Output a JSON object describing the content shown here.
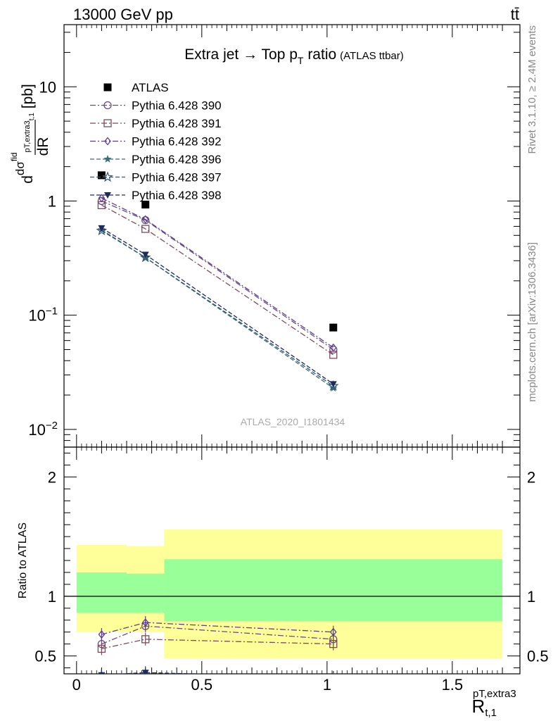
{
  "header": {
    "left": "13000 GeV pp",
    "right": "tt̄"
  },
  "side_labels": {
    "rivet": "Rivet 3.1.10, ≥ 2.4M events",
    "source": "mcplots.cern.ch [arXiv:1306.3436]"
  },
  "watermark": "ATLAS_2020_I1801434",
  "chart_data": [
    {
      "type": "scatter",
      "panel": "main",
      "title": "Extra jet → Top p",
      "title_sub": "T",
      "title_tail": " ratio",
      "title_note": "(ATLAS ttbar)",
      "ylabel": "dσ^fid / dR_pT,extra3 t,1 [pb]",
      "yscale": "log",
      "ylim": [
        0.007,
        35
      ],
      "xlim": [
        -0.05,
        1.77
      ],
      "y_ticks": [
        {
          "value": 0.01,
          "base": "10",
          "exp": "−2"
        },
        {
          "value": 0.1,
          "base": "10",
          "exp": "−1"
        },
        {
          "value": 1,
          "base": "1",
          "exp": ""
        },
        {
          "value": 10,
          "base": "10",
          "exp": ""
        }
      ],
      "legend_position": "top-left",
      "series": [
        {
          "name": "ATLAS",
          "color": "#000000",
          "marker": "filled-square",
          "line": "none",
          "x": [
            0.1,
            0.275,
            1.025
          ],
          "y": [
            1.68,
            0.93,
            0.078
          ]
        },
        {
          "name": "Pythia 6.428 390",
          "color": "#6b4a83",
          "marker": "open-circle",
          "line": "dash-dot",
          "x": [
            0.1,
            0.275,
            1.025
          ],
          "y": [
            1.0,
            0.68,
            0.05
          ]
        },
        {
          "name": "Pythia 6.428 391",
          "color": "#7a4b5c",
          "marker": "open-square",
          "line": "dash-dot",
          "x": [
            0.1,
            0.275,
            1.025
          ],
          "y": [
            0.92,
            0.57,
            0.045
          ]
        },
        {
          "name": "Pythia 6.428 392",
          "color": "#5c3f8f",
          "marker": "open-diamond",
          "line": "dash-dot",
          "x": [
            0.1,
            0.275,
            1.025
          ],
          "y": [
            1.06,
            0.69,
            0.052
          ]
        },
        {
          "name": "Pythia 6.428 396",
          "color": "#3f6b7a",
          "marker": "star",
          "line": "dashed",
          "x": [
            0.1,
            0.275,
            1.025
          ],
          "y": [
            0.56,
            0.32,
            0.023
          ]
        },
        {
          "name": "Pythia 6.428 397",
          "color": "#2e5a7a",
          "marker": "open-star",
          "line": "dashed",
          "x": [
            0.1,
            0.275,
            1.025
          ],
          "y": [
            0.55,
            0.32,
            0.024
          ]
        },
        {
          "name": "Pythia 6.428 398",
          "color": "#1e2a5a",
          "marker": "filled-triangle-down",
          "line": "dashed",
          "x": [
            0.1,
            0.275,
            1.025
          ],
          "y": [
            0.58,
            0.34,
            0.025
          ]
        }
      ]
    },
    {
      "type": "scatter",
      "panel": "ratio",
      "ylabel": "Ratio to ATLAS",
      "xlabel": "R",
      "xlabel_sub": "t,1",
      "xlabel_sup": "pT,extra3",
      "ylim": [
        0.35,
        2.25
      ],
      "xlim": [
        -0.05,
        1.77
      ],
      "x_ticks": [
        "0",
        "0.5",
        "1",
        "1.5"
      ],
      "x_tick_values": [
        0,
        0.5,
        1,
        1.5
      ],
      "y_ticks": [
        "0.5",
        "1",
        "2"
      ],
      "y_tick_values": [
        0.5,
        1,
        2
      ],
      "reference_line": 1,
      "bands": [
        {
          "x_lo": 0.0,
          "x_hi": 0.2,
          "y_lo_outer": 0.7,
          "y_hi_outer": 1.43,
          "y_lo_inner": 0.86,
          "y_hi_inner": 1.2
        },
        {
          "x_lo": 0.2,
          "x_hi": 0.35,
          "y_lo_outer": 0.7,
          "y_hi_outer": 1.42,
          "y_lo_inner": 0.86,
          "y_hi_inner": 1.19
        },
        {
          "x_lo": 0.35,
          "x_hi": 1.7,
          "y_lo_outer": 0.48,
          "y_hi_outer": 1.56,
          "y_lo_inner": 0.79,
          "y_hi_inner": 1.31
        }
      ],
      "band_colors": {
        "outer": "#ffff99",
        "inner": "#99ff99"
      },
      "series": [
        {
          "name": "Pythia 6.428 390",
          "x": [
            0.1,
            0.275,
            1.025
          ],
          "y": [
            0.6,
            0.75,
            0.64
          ]
        },
        {
          "name": "Pythia 6.428 391",
          "x": [
            0.1,
            0.275,
            1.025
          ],
          "y": [
            0.56,
            0.64,
            0.6
          ]
        },
        {
          "name": "Pythia 6.428 392",
          "x": [
            0.1,
            0.275,
            1.025
          ],
          "y": [
            0.68,
            0.78,
            0.7
          ]
        },
        {
          "name": "Pythia 6.428 396",
          "x": [
            0.1,
            0.275,
            1.025
          ],
          "y": [
            0.33,
            0.34,
            0.3
          ]
        },
        {
          "name": "Pythia 6.428 397",
          "x": [
            0.1,
            0.275,
            1.025
          ],
          "y": [
            0.33,
            0.34,
            0.3
          ]
        },
        {
          "name": "Pythia 6.428 398",
          "x": [
            0.1,
            0.275,
            1.025
          ],
          "y": [
            0.34,
            0.36,
            0.32
          ]
        }
      ]
    }
  ]
}
